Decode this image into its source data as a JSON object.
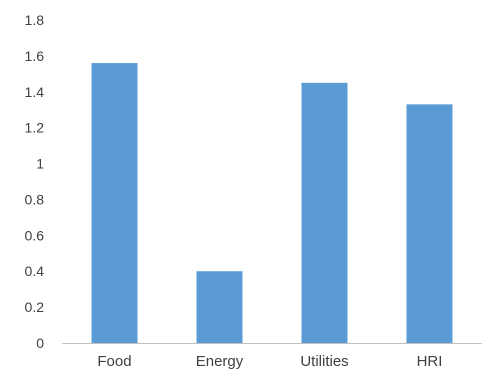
{
  "chart_data": {
    "type": "bar",
    "categories": [
      "Food",
      "Energy",
      "Utilities",
      "HRI"
    ],
    "values": [
      1.56,
      0.4,
      1.45,
      1.33
    ],
    "y_ticks": [
      "0",
      "0.2",
      "0.4",
      "0.6",
      "0.8",
      "1",
      "1.2",
      "1.4",
      "1.6",
      "1.8"
    ],
    "ylim": [
      0,
      1.8
    ],
    "grid": false,
    "legend": "none",
    "bar_color": "#5B9BD5",
    "axis_color": "#BFBFBF",
    "text_color": "#404040"
  }
}
